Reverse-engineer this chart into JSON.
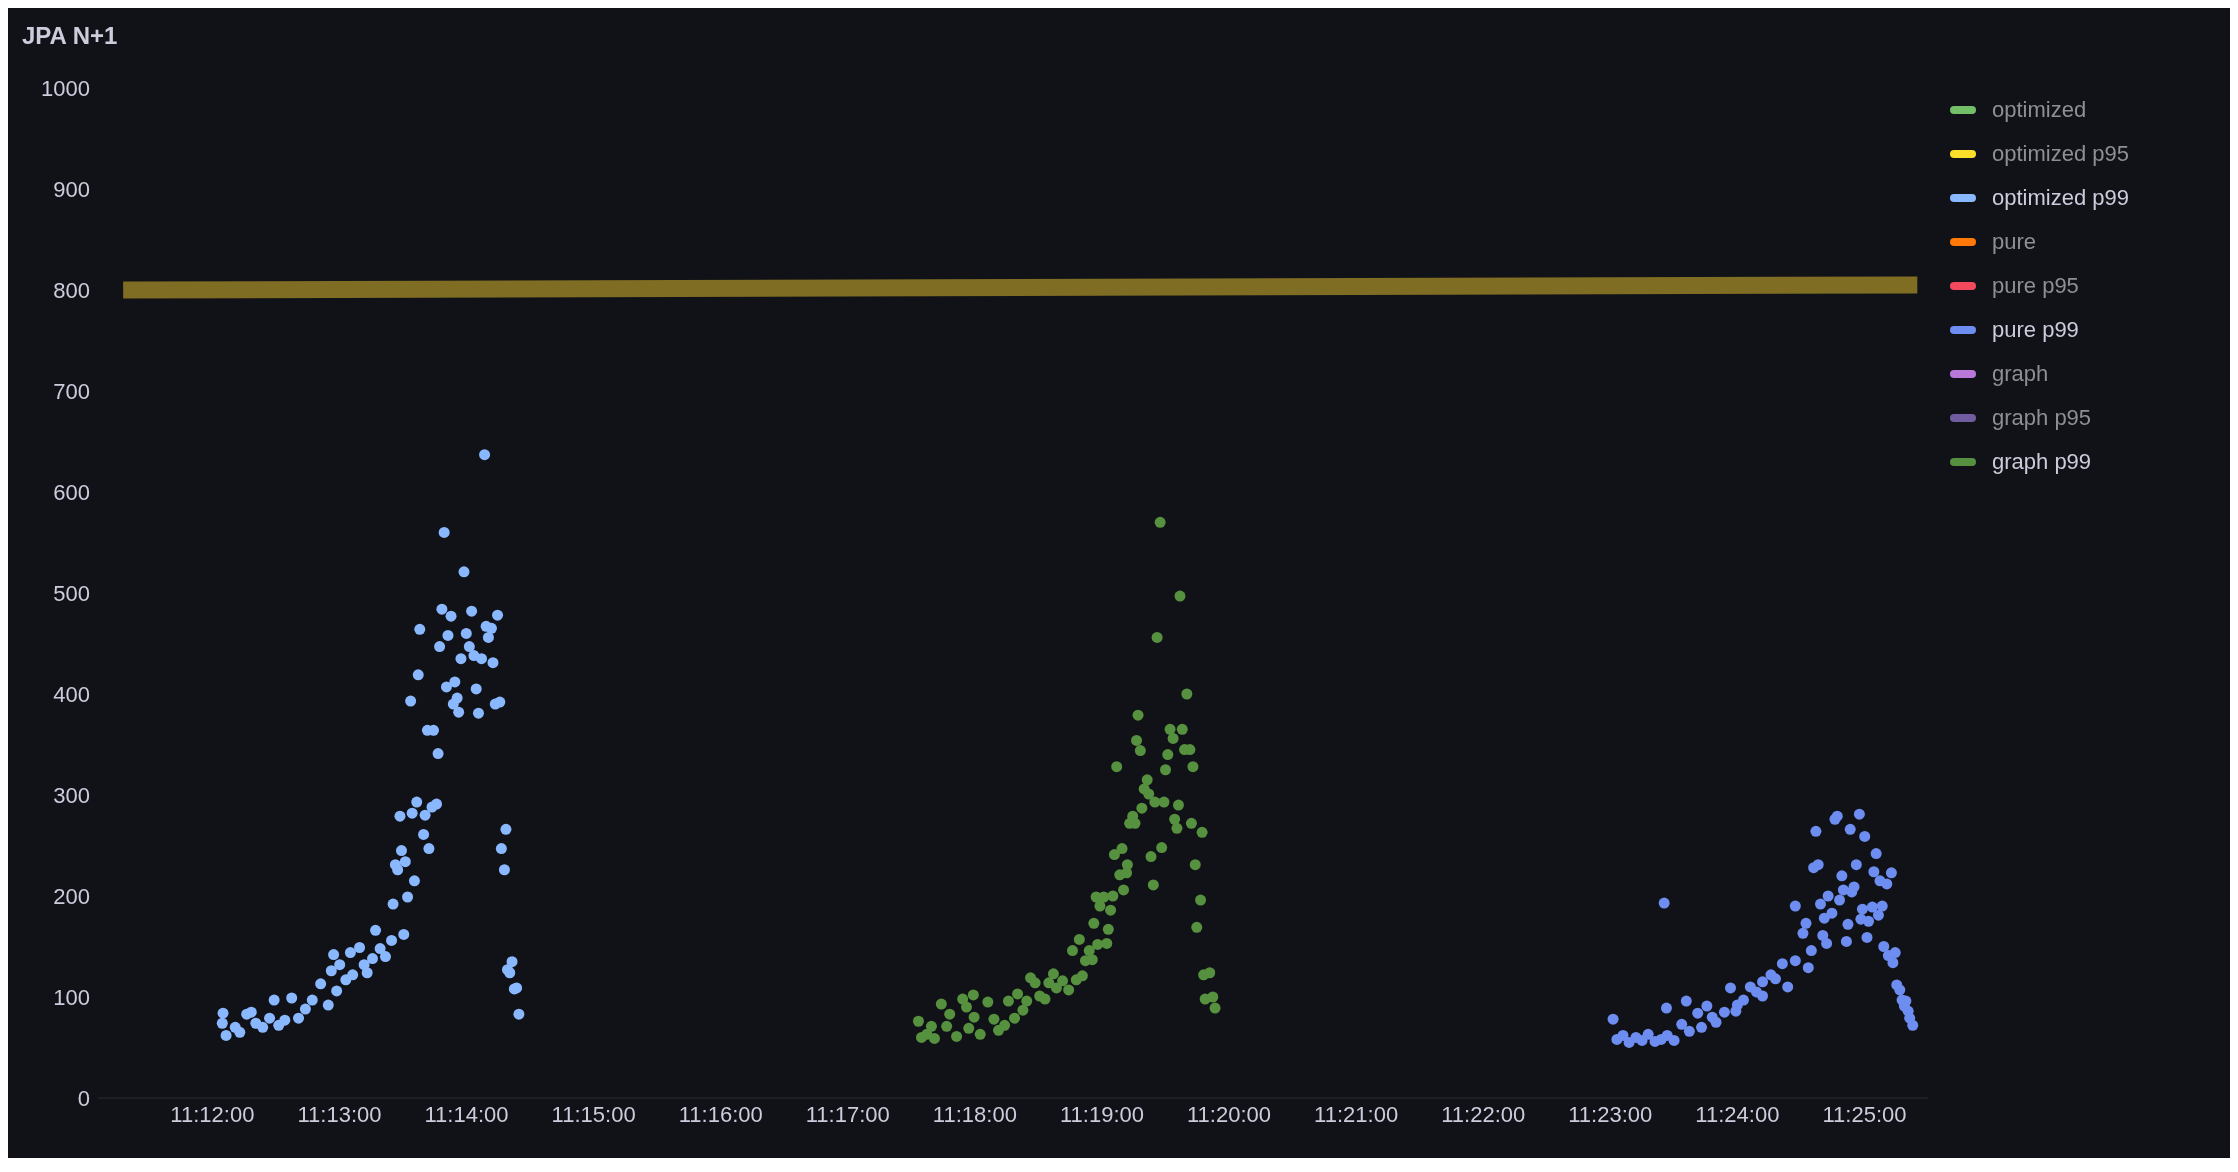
{
  "chart_data": {
    "type": "scatter",
    "title": "JPA N+1",
    "marker": "circle",
    "legend": "top right",
    "grid": false,
    "xlim": [
      11.185,
      11.425
    ],
    "xticks": [
      {
        "value": 11.2,
        "label": "11:12:00"
      },
      {
        "value": 11.21667,
        "label": "11:13:00"
      },
      {
        "value": 11.23333,
        "label": "11:14:00"
      },
      {
        "value": 11.25,
        "label": "11:15:00"
      },
      {
        "value": 11.26667,
        "label": "11:16:00"
      },
      {
        "value": 11.28333,
        "label": "11:17:00"
      },
      {
        "value": 11.3,
        "label": "11:18:00"
      },
      {
        "value": 11.31667,
        "label": "11:19:00"
      },
      {
        "value": 11.33333,
        "label": "11:20:00"
      },
      {
        "value": 11.35,
        "label": "11:21:00"
      },
      {
        "value": 11.36667,
        "label": "11:22:00"
      },
      {
        "value": 11.38333,
        "label": "11:23:00"
      },
      {
        "value": 11.4,
        "label": "11:24:00"
      },
      {
        "value": 11.41667,
        "label": "11:25:00"
      }
    ],
    "ylim": [
      0,
      1000
    ],
    "yticks": [
      0,
      100,
      200,
      300,
      400,
      500,
      600,
      700,
      800,
      900,
      1000
    ],
    "series": [
      {
        "type": "line",
        "marker": "none",
        "color": "#7f6d24",
        "x": [
          11.1883,
          11.4236
        ],
        "values": [
          800,
          805
        ]
      },
      {
        "name": "optimized",
        "color": "#73bf69"
      },
      {
        "name": "optimized p95",
        "color": "#fade2a"
      },
      {
        "name": "optimized p99",
        "color": "#8ab8ff",
        "x": [
          11.2014,
          11.2013,
          11.2018,
          11.203,
          11.2036,
          11.2045,
          11.2051,
          11.2057,
          11.2066,
          11.2075,
          11.2081,
          11.2087,
          11.2095,
          11.2104,
          11.2113,
          11.2122,
          11.2131,
          11.2142,
          11.2152,
          11.2156,
          11.2159,
          11.2163,
          11.2167,
          11.2175,
          11.2181,
          11.2184,
          11.2193,
          11.2199,
          11.2203,
          11.221,
          11.2214,
          11.222,
          11.2227,
          11.2235,
          11.2237,
          11.2251,
          11.224,
          11.2243,
          11.2248,
          11.2253,
          11.2256,
          11.2265,
          11.2246,
          11.2262,
          11.2268,
          11.2277,
          11.2279,
          11.2284,
          11.2288,
          11.2294,
          11.2296,
          11.2282,
          11.229,
          11.226,
          11.227,
          11.2272,
          11.2298,
          11.2301,
          11.2304,
          11.2307,
          11.2309,
          11.2313,
          11.2316,
          11.2318,
          11.2321,
          11.2323,
          11.2326,
          11.233,
          11.2333,
          11.2337,
          11.234,
          11.2343,
          11.2346,
          11.2349,
          11.2353,
          11.2357,
          11.2359,
          11.2362,
          11.2366,
          11.2368,
          11.2371,
          11.2374,
          11.2377,
          11.2385,
          11.2379,
          11.2383,
          11.2387,
          11.2393,
          11.239,
          11.2396,
          11.2399,
          11.2402
        ],
        "values": [
          84,
          74,
          62,
          70,
          65,
          83,
          85,
          74,
          70,
          79,
          97,
          72,
          77,
          99,
          79,
          88,
          97,
          113,
          92,
          126,
          142,
          106,
          132,
          117,
          144,
          122,
          149,
          132,
          124,
          138,
          166,
          148,
          140,
          156,
          192,
          162,
          231,
          226,
          245,
          234,
          199,
          215,
          279,
          282,
          293,
          261,
          280,
          247,
          288,
          291,
          341,
          364,
          364,
          393,
          419,
          464,
          447,
          484,
          560,
          407,
          458,
          477,
          390,
          412,
          396,
          382,
          435,
          521,
          460,
          447,
          482,
          438,
          405,
          381,
          435,
          637,
          467,
          456,
          465,
          431,
          390,
          478,
          392,
          266,
          247,
          226,
          127,
          135,
          124,
          108,
          109,
          83
        ]
      },
      {
        "name": "pure",
        "color": "#ff780a"
      },
      {
        "name": "pure p95",
        "color": "#f2495c"
      },
      {
        "name": "pure p99",
        "color": "#6d8ef0",
        "x": [
          11.3837,
          11.3842,
          11.385,
          11.3858,
          11.3867,
          11.3875,
          11.3883,
          11.3892,
          11.39,
          11.3908,
          11.3917,
          11.3937,
          11.3953,
          11.3967,
          11.3983,
          11.4,
          11.4008,
          11.4025,
          11.4033,
          11.405,
          11.3904,
          11.3907,
          11.3933,
          11.3927,
          11.3948,
          11.396,
          11.3972,
          11.3991,
          11.3998,
          11.4017,
          11.4033,
          11.4044,
          11.4059,
          11.4066,
          11.4076,
          11.4093,
          11.4076,
          11.4086,
          11.409,
          11.4097,
          11.4103,
          11.41,
          11.4106,
          11.4109,
          11.4112,
          11.4114,
          11.4117,
          11.4119,
          11.4124,
          11.4128,
          11.4131,
          11.4134,
          11.4137,
          11.4139,
          11.4143,
          11.4145,
          11.4148,
          11.415,
          11.4153,
          11.4156,
          11.416,
          11.4162,
          11.4164,
          11.4167,
          11.417,
          11.4172,
          11.4177,
          11.4179,
          11.4182,
          11.4185,
          11.4187,
          11.419,
          11.4192,
          11.4196,
          11.4198,
          11.4202,
          11.4204,
          11.4207,
          11.4209,
          11.4213,
          11.4216,
          11.4221,
          11.4219,
          11.4224,
          11.4226,
          11.423
        ],
        "values": [
          78,
          58,
          62,
          55,
          60,
          57,
          63,
          56,
          58,
          62,
          57,
          66,
          70,
          80,
          85,
          92,
          97,
          105,
          115,
          118,
          193,
          89,
          96,
          73,
          84,
          91,
          75,
          109,
          86,
          110,
          101,
          122,
          133,
          110,
          136,
          129,
          190,
          163,
          173,
          146,
          264,
          228,
          231,
          192,
          161,
          178,
          153,
          200,
          183,
          276,
          279,
          196,
          220,
          206,
          155,
          172,
          266,
          204,
          209,
          231,
          281,
          177,
          187,
          259,
          159,
          175,
          189,
          224,
          242,
          181,
          215,
          190,
          150,
          212,
          141,
          223,
          134,
          144,
          112,
          107,
          97,
          96,
          91,
          86,
          79,
          72
        ]
      },
      {
        "name": "graph",
        "color": "#b877d9"
      },
      {
        "name": "graph p95",
        "color": "#705da0"
      },
      {
        "name": "graph p99",
        "color": "#56913f",
        "x": [
          11.2926,
          11.293,
          11.2937,
          11.2943,
          11.2947,
          11.2956,
          11.2963,
          11.2967,
          11.2976,
          11.2984,
          11.2989,
          11.2992,
          11.2998,
          11.2999,
          11.3007,
          11.3017,
          11.3025,
          11.3031,
          11.3039,
          11.3044,
          11.3052,
          11.3056,
          11.3063,
          11.3068,
          11.3073,
          11.3079,
          11.3085,
          11.3092,
          11.3097,
          11.3103,
          11.3107,
          11.3115,
          11.3123,
          11.3128,
          11.3133,
          11.3137,
          11.3141,
          11.3145,
          11.315,
          11.3154,
          11.3156,
          11.3161,
          11.3159,
          11.3164,
          11.3169,
          11.3173,
          11.3175,
          11.3178,
          11.3181,
          11.3183,
          11.319,
          11.3193,
          11.3195,
          11.3199,
          11.32,
          11.3203,
          11.3207,
          11.321,
          11.3186,
          11.3212,
          11.3214,
          11.3217,
          11.3219,
          11.3222,
          11.3226,
          11.3228,
          11.3231,
          11.3234,
          11.3236,
          11.3239,
          11.3243,
          11.3245,
          11.3248,
          11.325,
          11.3253,
          11.3256,
          11.326,
          11.3262,
          11.3265,
          11.3267,
          11.3269,
          11.3272,
          11.3275,
          11.3278,
          11.3282,
          11.3284,
          11.3286,
          11.3289,
          11.3291,
          11.3296,
          11.3298,
          11.33,
          11.3308,
          11.3302,
          11.3312,
          11.3315
        ],
        "values": [
          76,
          60,
          63,
          71,
          59,
          93,
          71,
          83,
          61,
          98,
          90,
          69,
          102,
          80,
          63,
          95,
          78,
          67,
          72,
          96,
          79,
          103,
          87,
          96,
          119,
          114,
          101,
          98,
          114,
          123,
          109,
          116,
          107,
          146,
          117,
          157,
          121,
          136,
          146,
          137,
          173,
          152,
          199,
          190,
          199,
          153,
          167,
          186,
          200,
          241,
          221,
          247,
          206,
          223,
          231,
          272,
          279,
          272,
          328,
          354,
          379,
          344,
          287,
          306,
          315,
          301,
          239,
          211,
          293,
          456,
          570,
          248,
          293,
          325,
          340,
          365,
          356,
          276,
          267,
          290,
          497,
          365,
          345,
          400,
          345,
          272,
          328,
          231,
          169,
          196,
          263,
          122,
          124,
          98,
          100,
          89
        ]
      }
    ]
  }
}
